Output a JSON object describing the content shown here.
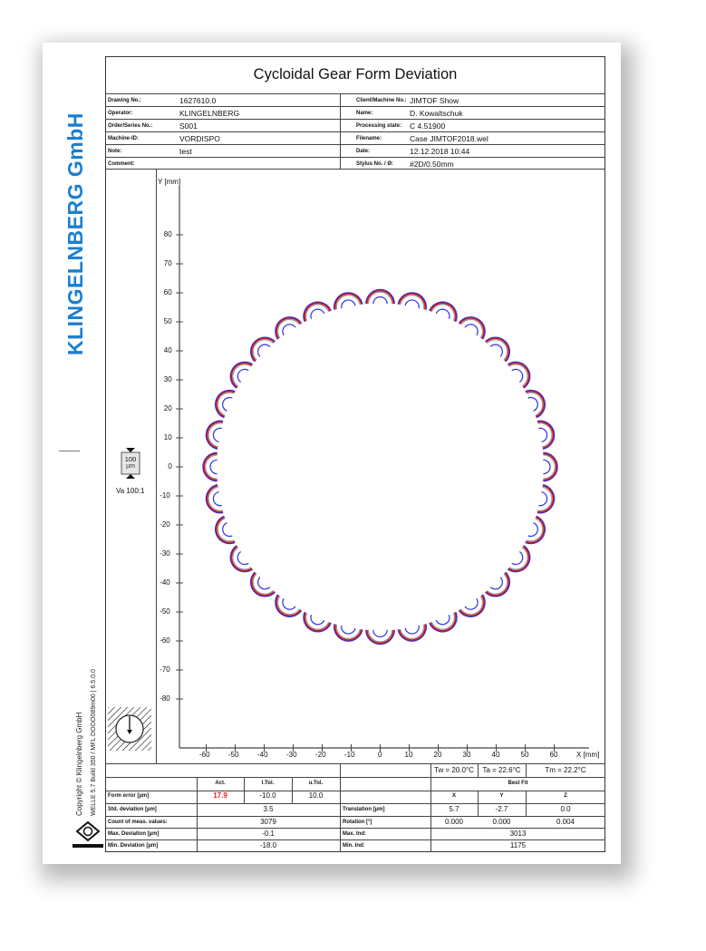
{
  "brand": "KLINGELNBERG GmbH",
  "copyright": "Copyright © Klingelnberg GmbH",
  "version": "WELLE 5.7 Build 350 / MFL DOOO089m00 | 6.5.0.0",
  "logo_text": "KLINGELNBERG",
  "title": "Cycloidal Gear Form Deviation",
  "info_left": [
    {
      "label": "Drawing No.:",
      "value": "1627610.0"
    },
    {
      "label": "Operator:",
      "value": "KLINGELNBERG"
    },
    {
      "label": "Order/Series No.:",
      "value": "S001"
    },
    {
      "label": "Machine-ID:",
      "value": "VORDISPO"
    },
    {
      "label": "Note:",
      "value": "test"
    },
    {
      "label": "Comment:",
      "value": ""
    }
  ],
  "info_right": [
    {
      "label": "Client/Machine No.:",
      "value": "JIMTOF Show"
    },
    {
      "label": "Name:",
      "value": "D. Kowaltschuk"
    },
    {
      "label": "Processing state:",
      "value": "C 4.51900"
    },
    {
      "label": "Filename:",
      "value": "Case JIMTOF2018.wel"
    },
    {
      "label": "Date:",
      "value": "12.12.2018  10:44"
    },
    {
      "label": "Stylus No. / Ø:",
      "value": "#2D/0.50mm"
    }
  ],
  "scale": {
    "value": "100",
    "unit": "µm",
    "ratio": "Va 100:1"
  },
  "plot": {
    "y_label": "Y [mm]",
    "x_label": "X [mm]",
    "y_ticks": [
      "80",
      "70",
      "60",
      "50",
      "40",
      "30",
      "20",
      "10",
      "0",
      "-10",
      "-20",
      "-30",
      "-40",
      "-50",
      "-60",
      "-70",
      "-80"
    ],
    "x_ticks": [
      "-60",
      "-50",
      "-40",
      "-30",
      "-20",
      "-10",
      "0",
      "10",
      "20",
      "30",
      "40",
      "50",
      "60"
    ],
    "lobes": 32,
    "colors": {
      "nominal": "#3030e0",
      "actual": "#d01818",
      "tolerance": "#9a9a9a"
    }
  },
  "temps": [
    "Tw = 20.0°C",
    "Ta = 22.6°C",
    "Tm = 22.2°C"
  ],
  "results": {
    "headers": [
      "Act.",
      "l.Tol.",
      "u.Tol."
    ],
    "form_error": {
      "label": "Form error [µm]",
      "act": "17.9",
      "ltol": "-10.0",
      "utol": "10.0",
      "act_color": "#e02020"
    },
    "std_dev": {
      "label": "Std. deviation [µm]",
      "value": "3.5"
    },
    "count": {
      "label": "Count of meas. values:",
      "value": "3079"
    },
    "max_dev": {
      "label": "Max. Deviation [µm]",
      "value": "-0.1"
    },
    "min_dev": {
      "label": "Min. Deviation [µm]",
      "value": "-18.0"
    }
  },
  "bestfit": {
    "title": "Best Fit",
    "axes": [
      "X",
      "Y",
      "Z"
    ],
    "translation": {
      "label": "Translation [µm]",
      "values": [
        "5.7",
        "-2.7",
        "0.0"
      ]
    },
    "rotation": {
      "label": "Rotation [°]",
      "values": [
        "0.000",
        "0.000",
        "0.004"
      ]
    },
    "max_ind": {
      "label": "Max. Ind:",
      "value": "3013"
    },
    "min_ind": {
      "label": "Min. Ind:",
      "value": "1175"
    }
  }
}
